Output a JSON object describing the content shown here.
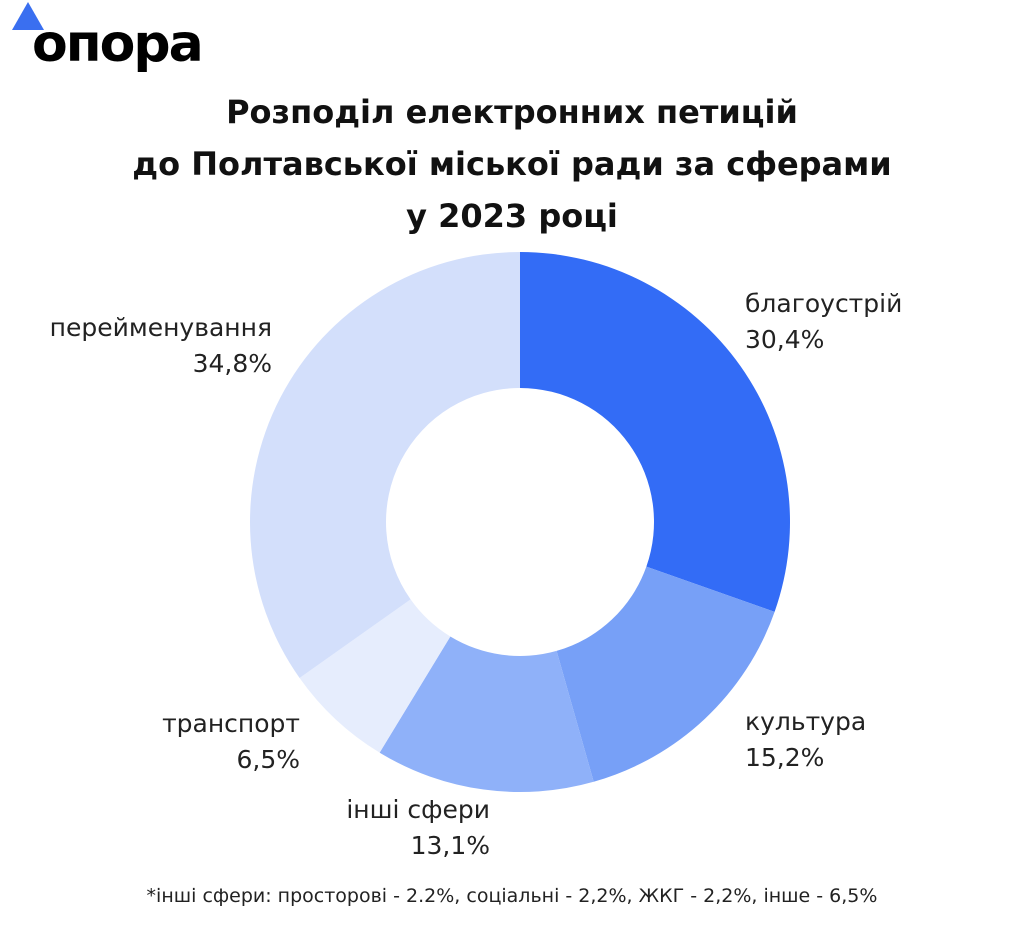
{
  "logo": {
    "text": "опора",
    "accent": "#3a6ff0"
  },
  "chart_data": {
    "type": "pie",
    "donut": true,
    "title": [
      "Розподіл електронних петицій",
      "до Полтавської міської ради за сферами",
      "у 2023 році"
    ],
    "slices": [
      {
        "label": "благоустрій",
        "value": 30.4,
        "value_label": "30,4%",
        "color": "#336cf6"
      },
      {
        "label": "культура",
        "value": 15.2,
        "value_label": "15,2%",
        "color": "#77a0f7"
      },
      {
        "label": "інші сфери",
        "value": 13.1,
        "value_label": "13,1%",
        "color": "#8fb1f9"
      },
      {
        "label": "транспорт",
        "value": 6.5,
        "value_label": "6,5%",
        "color": "#e6edfd"
      },
      {
        "label": "перейменування",
        "value": 34.8,
        "value_label": "34,8%",
        "color": "#d3dffb"
      }
    ],
    "start": "top",
    "direction": "clockwise",
    "footnote": "*інші сфери: просторові - 2.2%, соціальні - 2,2%, ЖКГ - 2,2%, інше - 6,5%"
  }
}
